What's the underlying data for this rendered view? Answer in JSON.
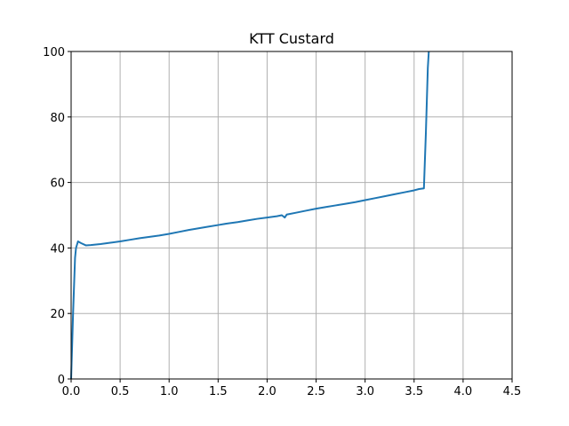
{
  "chart_data": {
    "type": "line",
    "title": "KTT Custard",
    "xlabel": "",
    "ylabel": "",
    "xlim": [
      0.0,
      4.5
    ],
    "ylim": [
      0,
      100
    ],
    "x_ticks": [
      "0.0",
      "0.5",
      "1.0",
      "1.5",
      "2.0",
      "2.5",
      "3.0",
      "3.5",
      "4.0",
      "4.5"
    ],
    "y_ticks": [
      "0",
      "20",
      "40",
      "60",
      "80",
      "100"
    ],
    "grid": true,
    "series": [
      {
        "color": "#1f77b4",
        "x": [
          0.0,
          0.02,
          0.04,
          0.05,
          0.07,
          0.1,
          0.15,
          0.2,
          0.3,
          0.4,
          0.5,
          0.6,
          0.7,
          0.8,
          0.9,
          1.0,
          1.1,
          1.2,
          1.3,
          1.4,
          1.5,
          1.6,
          1.7,
          1.8,
          1.9,
          2.0,
          2.1,
          2.15,
          2.18,
          2.2,
          2.3,
          2.4,
          2.5,
          2.6,
          2.7,
          2.8,
          2.9,
          3.0,
          3.1,
          3.2,
          3.3,
          3.4,
          3.5,
          3.55,
          3.6,
          3.62,
          3.64,
          3.65
        ],
        "y": [
          0.0,
          20.0,
          37.0,
          40.0,
          42.0,
          41.5,
          40.8,
          40.9,
          41.2,
          41.6,
          42.0,
          42.5,
          43.0,
          43.4,
          43.8,
          44.3,
          44.9,
          45.5,
          46.0,
          46.5,
          47.0,
          47.5,
          47.9,
          48.4,
          48.9,
          49.3,
          49.7,
          50.0,
          49.3,
          50.2,
          50.8,
          51.4,
          52.0,
          52.5,
          53.0,
          53.5,
          54.0,
          54.6,
          55.2,
          55.8,
          56.4,
          57.0,
          57.6,
          58.0,
          58.2,
          75.0,
          95.0,
          100.0
        ]
      }
    ]
  }
}
